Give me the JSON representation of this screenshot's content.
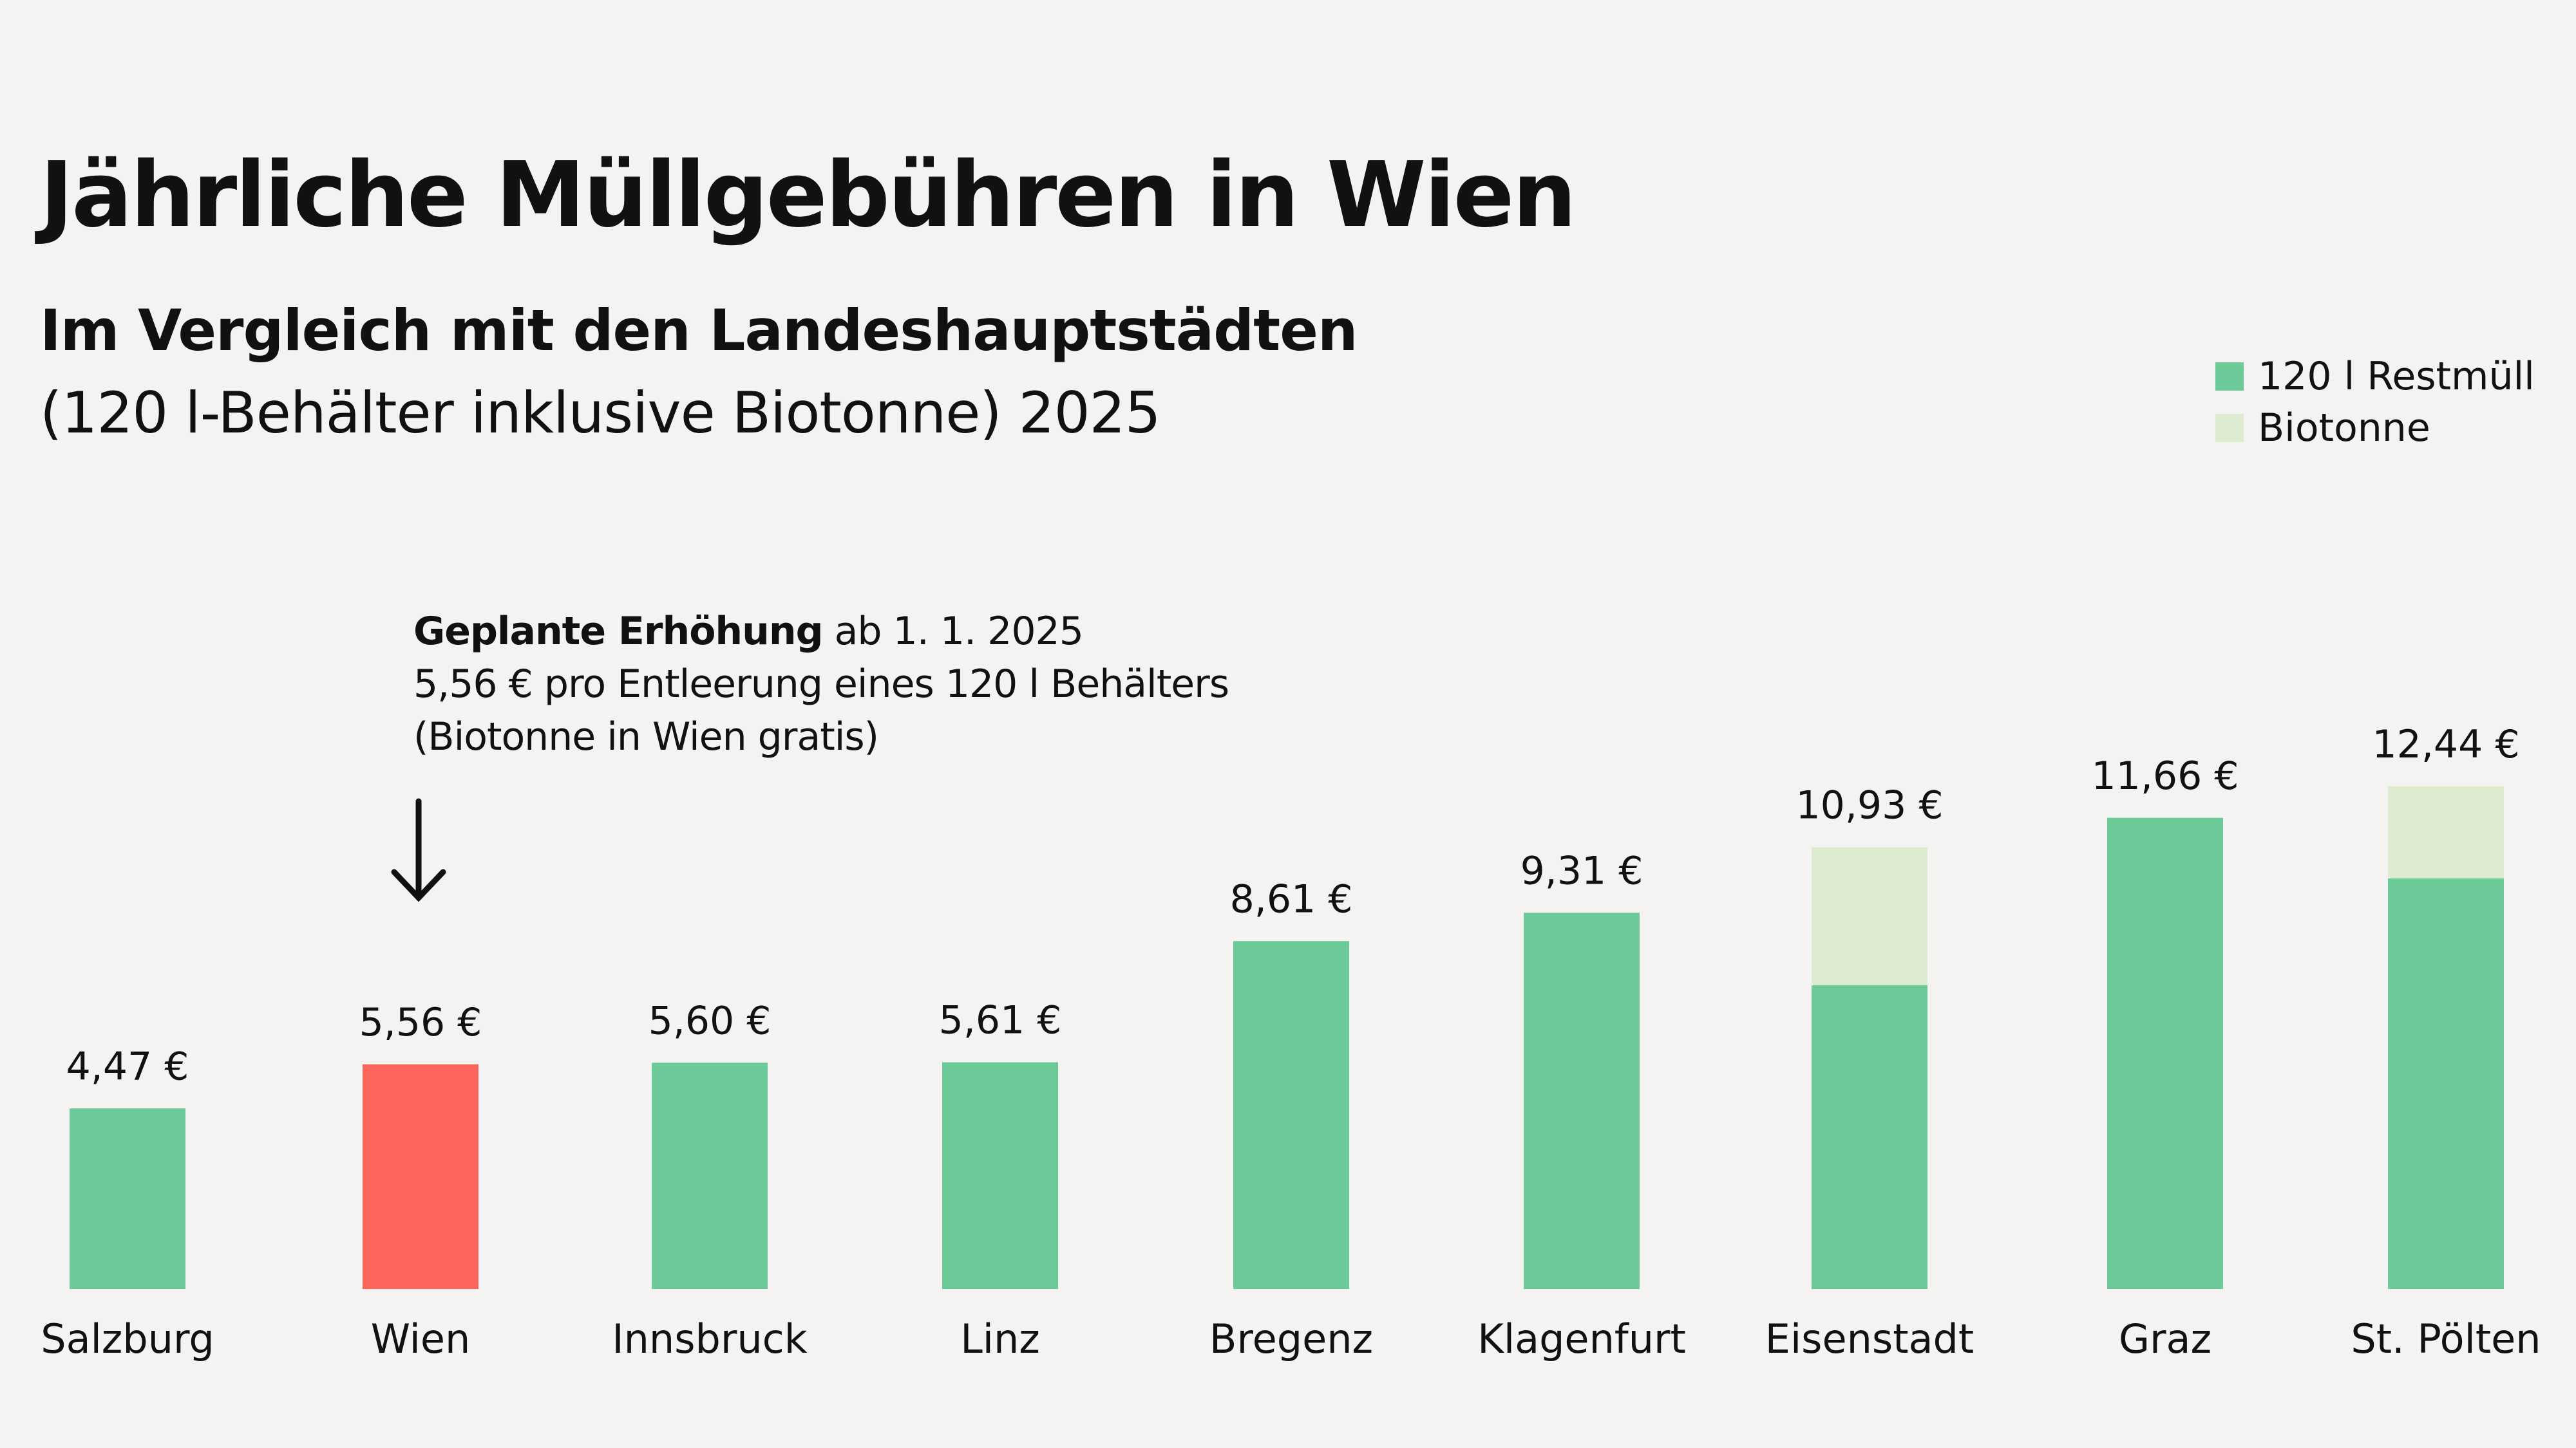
{
  "header": {
    "title": "Jährliche Müllgebühren in Wien",
    "subtitle": "Im Vergleich mit den Landeshauptstädten",
    "subtitle2": "(120 l-Behälter inklusive Biotonne) 2025"
  },
  "annotation": {
    "bold": "Geplante Erhöhung",
    "line1_rest": " ab 1. 1. 2025",
    "line2": "5,56 € pro Entleerung eines 120 l Behälters",
    "line3": "(Biotonne in Wien gratis)",
    "arrow_icon": "arrow-down-icon"
  },
  "colors": {
    "restmuell": "#6cc998",
    "biotonne": "#ddecd0",
    "highlight": "#fd665c",
    "background": "#f4f3f1"
  },
  "chart_data": {
    "type": "bar",
    "stacked": true,
    "title": "Jährliche Müllgebühren in Wien",
    "legend_position": "top-right",
    "grid": false,
    "categories": [
      "Salzburg",
      "Wien",
      "Innsbruck",
      "Linz",
      "Bregenz",
      "Klagenfurt",
      "Eisenstadt",
      "Graz",
      "St. Pölten"
    ],
    "series": [
      {
        "name": "120 l Restmüll",
        "values": [
          4.47,
          5.56,
          5.6,
          5.61,
          8.61,
          9.31,
          7.52,
          11.66,
          10.16
        ]
      },
      {
        "name": "Biotonne",
        "values": [
          0,
          0,
          0,
          0,
          0,
          0,
          3.41,
          0,
          2.28
        ]
      }
    ],
    "totals_labels": [
      "4,47 €",
      "5,56 €",
      "5,60 €",
      "5,61 €",
      "8,61 €",
      "9,31 €",
      "10,93 €",
      "11,66 €",
      "12,44 €"
    ],
    "highlight_category": "Wien",
    "ylim": [
      0,
      12.44
    ]
  }
}
